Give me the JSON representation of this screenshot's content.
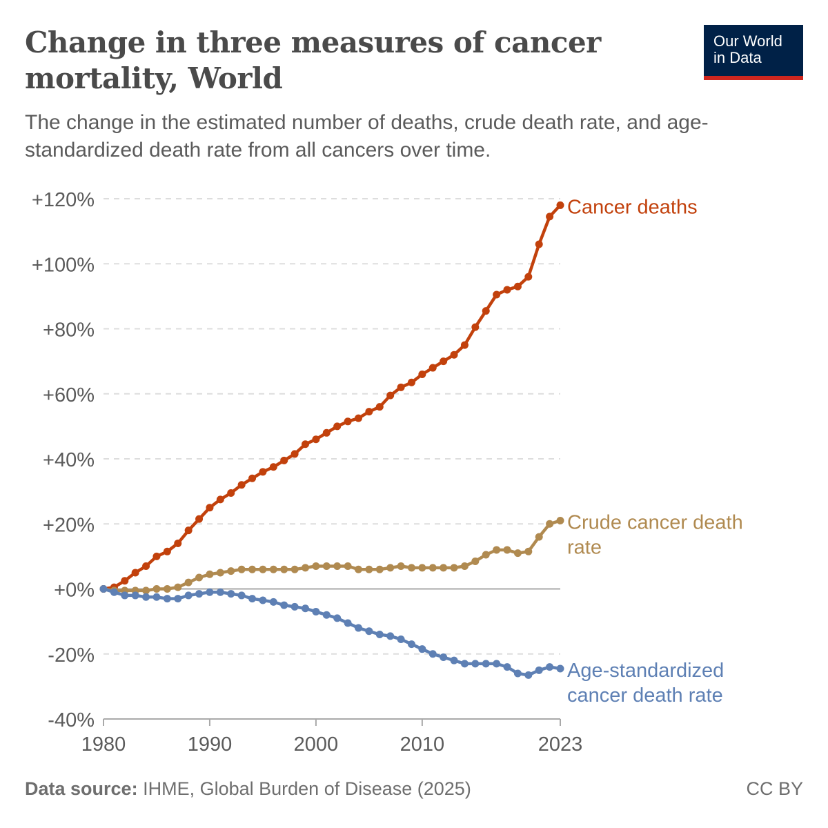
{
  "title": "Change in three measures of cancer mortality, World",
  "subtitle": "The change in the estimated number of deaths, crude death rate, and age-standardized death rate from all cancers over time.",
  "logo": {
    "line1": "Our World",
    "line2": "in Data"
  },
  "footer": {
    "source_label": "Data source:",
    "source_text": "IHME, Global Burden of Disease (2025)",
    "license": "CC BY"
  },
  "colors": {
    "deaths": "#c2410c",
    "crude": "#b08a50",
    "age": "#5e80b4",
    "text": "#5b5b5b",
    "grid": "#dddddd",
    "zero": "#a9a9a9"
  },
  "chart_data": {
    "type": "line",
    "title": "Change in three measures of cancer mortality, World",
    "xlabel": "",
    "ylabel": "",
    "xlim": [
      1980,
      2023
    ],
    "ylim": [
      -40,
      120
    ],
    "x_ticks": [
      1980,
      1990,
      2000,
      2010,
      2023
    ],
    "x_tick_labels": [
      "1980",
      "1990",
      "2000",
      "2010",
      "2023"
    ],
    "y_ticks": [
      -40,
      -20,
      0,
      20,
      40,
      60,
      80,
      100,
      120
    ],
    "y_tick_labels": [
      "-40%",
      "-20%",
      "+0%",
      "+20%",
      "+40%",
      "+60%",
      "+80%",
      "+100%",
      "+120%"
    ],
    "x": [
      1980,
      1981,
      1982,
      1983,
      1984,
      1985,
      1986,
      1987,
      1988,
      1989,
      1990,
      1991,
      1992,
      1993,
      1994,
      1995,
      1996,
      1997,
      1998,
      1999,
      2000,
      2001,
      2002,
      2003,
      2004,
      2005,
      2006,
      2007,
      2008,
      2009,
      2010,
      2011,
      2012,
      2013,
      2014,
      2015,
      2016,
      2017,
      2018,
      2019,
      2020,
      2021,
      2022,
      2023
    ],
    "series": [
      {
        "name": "Cancer deaths",
        "label_lines": [
          "Cancer deaths"
        ],
        "color_key": "deaths",
        "values": [
          0,
          0.5,
          2.5,
          5,
          7,
          10,
          11.5,
          14,
          18,
          21.5,
          25,
          27.5,
          29.5,
          32,
          34,
          36,
          37.5,
          39.5,
          41.5,
          44.5,
          46,
          48,
          50,
          51.5,
          52.5,
          54.5,
          56,
          59.5,
          62,
          63.5,
          66,
          68,
          70,
          72,
          75,
          80.5,
          85.5,
          90.5,
          92,
          93,
          96,
          106,
          114.5,
          118
        ]
      },
      {
        "name": "Crude cancer death rate",
        "label_lines": [
          "Crude cancer death",
          "rate"
        ],
        "color_key": "crude",
        "values": [
          0,
          -0.5,
          -0.5,
          -0.5,
          -0.5,
          0,
          0,
          0.5,
          2,
          3.5,
          4.5,
          5,
          5.5,
          6,
          6,
          6,
          6,
          6,
          6,
          6.5,
          7,
          7,
          7,
          7,
          6,
          6,
          6,
          6.5,
          7,
          6.5,
          6.5,
          6.5,
          6.5,
          6.5,
          7,
          8.5,
          10.5,
          12,
          12,
          11,
          11.5,
          16,
          20,
          21
        ]
      },
      {
        "name": "Age-standardized cancer death rate",
        "label_lines": [
          "Age-standardized",
          "cancer death rate"
        ],
        "color_key": "age",
        "values": [
          0,
          -1,
          -2,
          -2,
          -2.5,
          -2.5,
          -3,
          -3,
          -2,
          -1.5,
          -1,
          -1,
          -1.5,
          -2,
          -3,
          -3.5,
          -4,
          -5,
          -5.5,
          -6,
          -7,
          -8,
          -9,
          -10.5,
          -12,
          -13,
          -14,
          -14.5,
          -15.5,
          -17,
          -18.5,
          -20,
          -21,
          -22,
          -23,
          -23,
          -23,
          -23,
          -24,
          -26,
          -26.5,
          -25,
          -24,
          -24.5
        ]
      }
    ],
    "grid": true
  }
}
